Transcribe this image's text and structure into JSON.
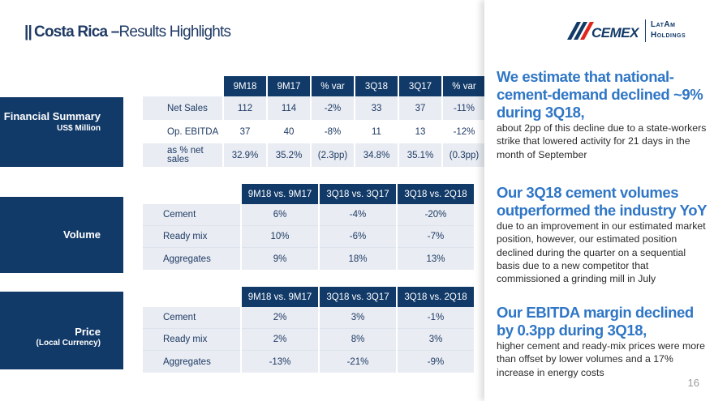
{
  "header": {
    "bars": "||",
    "title_bold": "Costa Rica",
    "title_dash": "–",
    "title_rest": "Results Highlights"
  },
  "logo": {
    "brand": "CEMEX",
    "sub1": "LatAm",
    "sub2": "Holdings",
    "brand_color": "#123a68",
    "accent_color": "#e1261c"
  },
  "sections": {
    "financial": {
      "label": "Financial Summary",
      "sublabel": "US$ Million"
    },
    "volume": {
      "label": "Volume"
    },
    "price": {
      "label": "Price",
      "sublabel": "(Local Currency)"
    }
  },
  "financial_table": {
    "headers": [
      "9M18",
      "9M17",
      "% var",
      "3Q18",
      "3Q17",
      "% var"
    ],
    "rows": [
      {
        "label": "Net Sales",
        "values": [
          "112",
          "114",
          "-2%",
          "33",
          "37",
          "-11%"
        ]
      },
      {
        "label": "Op. EBITDA",
        "values": [
          "37",
          "40",
          "-8%",
          "11",
          "13",
          "-12%"
        ]
      },
      {
        "label": "as % net sales",
        "values": [
          "32.9%",
          "35.2%",
          "(2.3pp)",
          "34.8%",
          "35.1%",
          "(0.3pp)"
        ]
      }
    ]
  },
  "volume_table": {
    "headers": [
      "9M18 vs. 9M17",
      "3Q18 vs. 3Q17",
      "3Q18 vs. 2Q18"
    ],
    "rows": [
      {
        "label": "Cement",
        "values": [
          "6%",
          "-4%",
          "-20%"
        ]
      },
      {
        "label": "Ready mix",
        "values": [
          "10%",
          "-6%",
          "-7%"
        ]
      },
      {
        "label": "Aggregates",
        "values": [
          "9%",
          "18%",
          "13%"
        ]
      }
    ]
  },
  "price_table": {
    "headers": [
      "9M18 vs. 9M17",
      "3Q18 vs. 3Q17",
      "3Q18 vs. 2Q18"
    ],
    "rows": [
      {
        "label": "Cement",
        "values": [
          "2%",
          "3%",
          "-1%"
        ]
      },
      {
        "label": "Ready mix",
        "values": [
          "2%",
          "8%",
          "3%"
        ]
      },
      {
        "label": "Aggregates",
        "values": [
          "-13%",
          "-21%",
          "-9%"
        ]
      }
    ]
  },
  "highlights": [
    {
      "headline": "We estimate that national-cement-demand declined ~9% during 3Q18,",
      "body": "about 2pp of this decline due to a state-workers strike that lowered activity for 21 days in the month of September"
    },
    {
      "headline": "Our 3Q18 cement volumes outperformed the industry YoY",
      "body": "due to an improvement in our estimated market position, however, our estimated position declined during the quarter on a sequential basis due to a new competitor that commissioned a grinding mill in July"
    },
    {
      "headline": "Our EBITDA margin declined by 0.3pp during 3Q18,",
      "body": "higher cement and ready-mix prices were more than offset by lower volumes and a 17% increase in energy costs"
    }
  ],
  "page_number": "16"
}
